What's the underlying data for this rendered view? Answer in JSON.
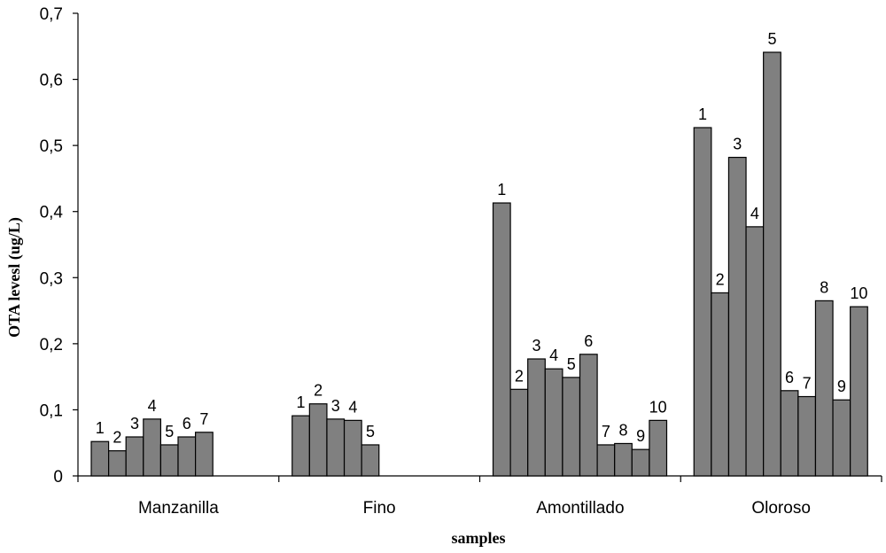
{
  "chart_data": {
    "type": "bar",
    "title": "",
    "xlabel": "samples",
    "ylabel": "OTA levesl (ug/L)",
    "ylim": [
      0,
      0.7
    ],
    "yticks": [
      "0",
      "0,1",
      "0,2",
      "0,3",
      "0,4",
      "0,5",
      "0,6",
      "0,7"
    ],
    "grid": false,
    "bar_color": "#808080",
    "groups": [
      {
        "name": "Manzanilla",
        "labels": [
          "1",
          "2",
          "3",
          "4",
          "5",
          "6",
          "7"
        ],
        "values": [
          0.052,
          0.038,
          0.059,
          0.086,
          0.047,
          0.059,
          0.066
        ]
      },
      {
        "name": "Fino",
        "labels": [
          "1",
          "2",
          "3",
          "4",
          "5"
        ],
        "values": [
          0.091,
          0.109,
          0.086,
          0.084,
          0.047
        ]
      },
      {
        "name": "Amontillado",
        "labels": [
          "1",
          "2",
          "3",
          "4",
          "5",
          "6",
          "7",
          "8",
          "9",
          "10"
        ],
        "values": [
          0.413,
          0.131,
          0.177,
          0.162,
          0.149,
          0.184,
          0.047,
          0.049,
          0.04,
          0.084
        ]
      },
      {
        "name": "Oloroso",
        "labels": [
          "1",
          "2",
          "3",
          "4",
          "5",
          "6",
          "7",
          "8",
          "9",
          "10"
        ],
        "values": [
          0.527,
          0.277,
          0.482,
          0.377,
          0.641,
          0.129,
          0.12,
          0.265,
          0.115,
          0.256
        ]
      }
    ]
  }
}
